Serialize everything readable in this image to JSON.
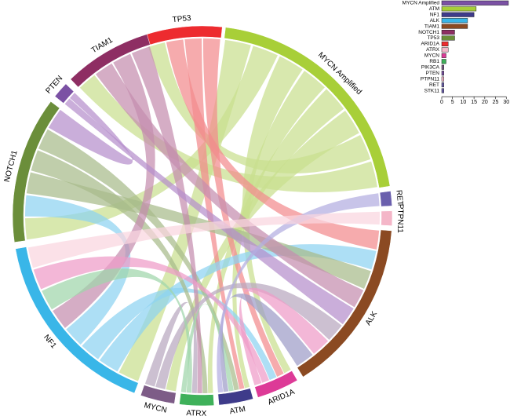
{
  "chart_data": [
    {
      "type": "chord",
      "title": "",
      "sectors": [
        {
          "name": "TP53",
          "color": "#ed2b2f"
        },
        {
          "name": "MYCN Amplified",
          "color": "#a8cf38"
        },
        {
          "name": "RET",
          "color": "#6a5fad"
        },
        {
          "name": "PTPN11",
          "color": "#f4b6c8"
        },
        {
          "name": "ALK",
          "color": "#8b4a22"
        },
        {
          "name": "ARID1A",
          "color": "#dd3a97"
        },
        {
          "name": "ATM",
          "color": "#3e3b8a"
        },
        {
          "name": "ATRX",
          "color": "#3fb15a"
        },
        {
          "name": "MYCN",
          "color": "#7d5c87"
        },
        {
          "name": "NF1",
          "color": "#39b6e8"
        },
        {
          "name": "NOTCH1",
          "color": "#6b8e3a"
        },
        {
          "name": "PTEN",
          "color": "#7b51a4"
        },
        {
          "name": "TIAM1",
          "color": "#8e2e63"
        }
      ],
      "links": [
        {
          "source": "MYCN Amplified",
          "target": "NF1",
          "color": "#c9df8f"
        },
        {
          "source": "MYCN Amplified",
          "target": "NOTCH1",
          "color": "#c9df8f"
        },
        {
          "source": "MYCN Amplified",
          "target": "ARID1A",
          "color": "#c9df8f"
        },
        {
          "source": "MYCN Amplified",
          "target": "ATM",
          "color": "#c9df8f"
        },
        {
          "source": "MYCN Amplified",
          "target": "ATRX",
          "color": "#c9df8f"
        },
        {
          "source": "MYCN Amplified",
          "target": "MYCN",
          "color": "#c9df8f"
        },
        {
          "source": "MYCN Amplified",
          "target": "TP53",
          "color": "#c9df8f"
        },
        {
          "source": "MYCN Amplified",
          "target": "TIAM1",
          "color": "#c9df8f"
        },
        {
          "source": "TP53",
          "target": "ALK",
          "color": "#f28b8e"
        },
        {
          "source": "TP53",
          "target": "ATM",
          "color": "#f28b8e"
        },
        {
          "source": "TP53",
          "target": "ARID1A",
          "color": "#f28b8e"
        },
        {
          "source": "NF1",
          "target": "ALK",
          "color": "#8ed3f1"
        },
        {
          "source": "NF1",
          "target": "ARID1A",
          "color": "#8ed3f1"
        },
        {
          "source": "NF1",
          "target": "NOTCH1",
          "color": "#8ed3f1"
        },
        {
          "source": "NOTCH1",
          "target": "ALK",
          "color": "#a7bb8a"
        },
        {
          "source": "NOTCH1",
          "target": "ATRX",
          "color": "#a7bb8a"
        },
        {
          "source": "NOTCH1",
          "target": "ATM",
          "color": "#a7bb8a"
        },
        {
          "source": "TIAM1",
          "target": "ALK",
          "color": "#c58eae"
        },
        {
          "source": "TIAM1",
          "target": "NF1",
          "color": "#c58eae"
        },
        {
          "source": "TIAM1",
          "target": "ATRX",
          "color": "#c58eae"
        },
        {
          "source": "PTEN",
          "target": "ALK",
          "color": "#b58fcc"
        },
        {
          "source": "PTEN",
          "target": "NOTCH1",
          "color": "#b58fcc"
        },
        {
          "source": "MYCN",
          "target": "ALK",
          "color": "#b8a8bf"
        },
        {
          "source": "MYCN",
          "target": "ATRX",
          "color": "#b8a8bf"
        },
        {
          "source": "ATRX",
          "target": "NF1",
          "color": "#9fd6ab"
        },
        {
          "source": "ATRX",
          "target": "ATM",
          "color": "#9fd6ab"
        },
        {
          "source": "ARID1A",
          "target": "NF1",
          "color": "#ef9bc8"
        },
        {
          "source": "ARID1A",
          "target": "ALK",
          "color": "#ef9bc8"
        },
        {
          "source": "ATM",
          "target": "ALK",
          "color": "#9e9cc8"
        },
        {
          "source": "RET",
          "target": "ATM",
          "color": "#b3ade0"
        },
        {
          "source": "PTPN11",
          "target": "NF1",
          "color": "#f9d5df"
        }
      ]
    },
    {
      "type": "bar",
      "orientation": "horizontal",
      "title": "",
      "categories": [
        "MYCN Amplified",
        "ATM",
        "NF1",
        "ALK",
        "TIAM1",
        "NOTCH1",
        "TP53",
        "ARID1A",
        "ATRX",
        "MYCN",
        "RB1",
        "PIK3CA",
        "PTEN",
        "PTPN11",
        "RET",
        "STK11"
      ],
      "values": [
        31,
        16,
        15,
        12,
        12,
        6,
        6,
        3,
        3,
        2,
        2,
        1,
        1,
        1,
        1,
        1
      ],
      "colors": [
        "#7b51a4",
        "#a8cf38",
        "#3e3b8a",
        "#39b6e8",
        "#8b4a22",
        "#8e2e63",
        "#6b8e3a",
        "#ed2b2f",
        "#f4b6c8",
        "#dd3a97",
        "#3fb15a",
        "#7d5c87",
        "#7b51a4",
        "#f4b6c8",
        "#6a5fad",
        "#6a5fad"
      ],
      "xlim": [
        0,
        31
      ],
      "xticks": [
        0,
        5,
        10,
        15,
        20,
        25,
        30
      ],
      "xlabel": "",
      "ylabel": ""
    }
  ]
}
